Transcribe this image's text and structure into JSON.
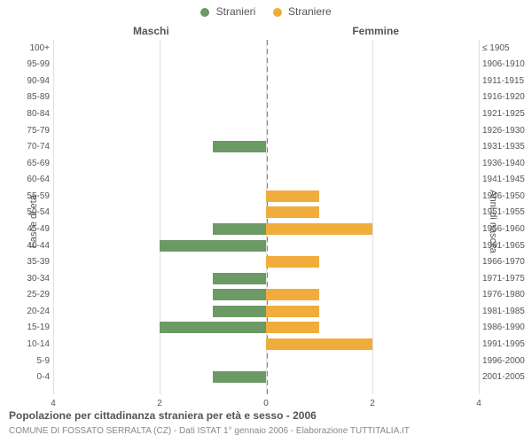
{
  "legend": {
    "male": {
      "label": "Stranieri",
      "color": "#6b9a65"
    },
    "female": {
      "label": "Straniere",
      "color": "#f0ad3c"
    }
  },
  "side_titles": {
    "left": "Maschi",
    "right": "Femmine"
  },
  "axis_titles": {
    "left": "Fasce di età",
    "right": "Anni di nascita"
  },
  "chart": {
    "type": "population-pyramid",
    "xmax": 4,
    "xticks": [
      4,
      2,
      0,
      2,
      4
    ],
    "background_color": "#ffffff",
    "grid_color": "#e0e0e0",
    "center_line_color": "#888855",
    "row_height": 18.6,
    "rows": [
      {
        "age": "100+",
        "birth": "≤ 1905",
        "m": 0,
        "f": 0
      },
      {
        "age": "95-99",
        "birth": "1906-1910",
        "m": 0,
        "f": 0
      },
      {
        "age": "90-94",
        "birth": "1911-1915",
        "m": 0,
        "f": 0
      },
      {
        "age": "85-89",
        "birth": "1916-1920",
        "m": 0,
        "f": 0
      },
      {
        "age": "80-84",
        "birth": "1921-1925",
        "m": 0,
        "f": 0
      },
      {
        "age": "75-79",
        "birth": "1926-1930",
        "m": 0,
        "f": 0
      },
      {
        "age": "70-74",
        "birth": "1931-1935",
        "m": 1,
        "f": 0
      },
      {
        "age": "65-69",
        "birth": "1936-1940",
        "m": 0,
        "f": 0
      },
      {
        "age": "60-64",
        "birth": "1941-1945",
        "m": 0,
        "f": 0
      },
      {
        "age": "55-59",
        "birth": "1946-1950",
        "m": 0,
        "f": 1
      },
      {
        "age": "50-54",
        "birth": "1951-1955",
        "m": 0,
        "f": 1
      },
      {
        "age": "45-49",
        "birth": "1956-1960",
        "m": 1,
        "f": 2
      },
      {
        "age": "40-44",
        "birth": "1961-1965",
        "m": 2,
        "f": 0
      },
      {
        "age": "35-39",
        "birth": "1966-1970",
        "m": 0,
        "f": 1
      },
      {
        "age": "30-34",
        "birth": "1971-1975",
        "m": 1,
        "f": 0
      },
      {
        "age": "25-29",
        "birth": "1976-1980",
        "m": 1,
        "f": 1
      },
      {
        "age": "20-24",
        "birth": "1981-1985",
        "m": 1,
        "f": 1
      },
      {
        "age": "15-19",
        "birth": "1986-1990",
        "m": 2,
        "f": 1
      },
      {
        "age": "10-14",
        "birth": "1991-1995",
        "m": 0,
        "f": 2
      },
      {
        "age": "5-9",
        "birth": "1996-2000",
        "m": 0,
        "f": 0
      },
      {
        "age": "0-4",
        "birth": "2001-2005",
        "m": 1,
        "f": 0
      }
    ]
  },
  "caption": "Popolazione per cittadinanza straniera per età e sesso - 2006",
  "sub_caption": "COMUNE DI FOSSATO SERRALTA (CZ) - Dati ISTAT 1° gennaio 2006 - Elaborazione TUTTITALIA.IT"
}
